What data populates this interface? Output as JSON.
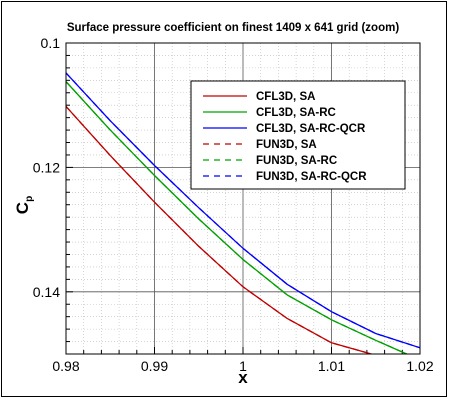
{
  "chart_data": {
    "type": "line",
    "title": "Surface pressure coefficient on finest 1409 x 641 grid (zoom)",
    "xlabel": "x",
    "ylabel": "C",
    "ylabel_sub": "p",
    "xlim": [
      0.98,
      1.02
    ],
    "ylim": [
      0.1,
      0.15
    ],
    "y_inverted": true,
    "x_ticks": [
      0.98,
      0.99,
      1.0,
      1.01,
      1.02
    ],
    "x_tick_labels": [
      "0.98",
      "0.99",
      "1",
      "1.01",
      "1.02"
    ],
    "y_ticks": [
      0.1,
      0.12,
      0.14
    ],
    "y_tick_labels": [
      "0.1",
      "0.12",
      "0.14"
    ],
    "grid": true,
    "legend_position": "top-right",
    "series": [
      {
        "name": "CFL3D, SA",
        "color": "#c00000",
        "dash": "solid",
        "x": [
          0.98,
          0.985,
          0.99,
          0.995,
          1.0,
          1.005,
          1.01,
          1.0145
        ],
        "y": [
          0.1102,
          0.1181,
          0.1256,
          0.1327,
          0.1392,
          0.1443,
          0.1482,
          0.15
        ]
      },
      {
        "name": "CFL3D, SA-RC",
        "color": "#00a000",
        "dash": "solid",
        "x": [
          0.98,
          0.985,
          0.99,
          0.995,
          1.0,
          1.005,
          1.01,
          1.015,
          1.0185
        ],
        "y": [
          0.1062,
          0.114,
          0.1213,
          0.1283,
          0.1348,
          0.1405,
          0.1445,
          0.1478,
          0.15
        ]
      },
      {
        "name": "CFL3D, SA-RC-QCR",
        "color": "#0000ff",
        "dash": "solid",
        "x": [
          0.98,
          0.985,
          0.99,
          0.995,
          1.0,
          1.005,
          1.01,
          1.015,
          1.02
        ],
        "y": [
          0.1048,
          0.1125,
          0.1197,
          0.1265,
          0.133,
          0.1388,
          0.1432,
          0.1467,
          0.149
        ]
      },
      {
        "name": "FUN3D, SA",
        "color": "#c00000",
        "dash": "dashed",
        "x": [
          0.98,
          0.985,
          0.99,
          0.995,
          1.0,
          1.005,
          1.01,
          1.0145
        ],
        "y": [
          0.1102,
          0.1181,
          0.1256,
          0.1327,
          0.1392,
          0.1443,
          0.1482,
          0.15
        ]
      },
      {
        "name": "FUN3D, SA-RC",
        "color": "#00a000",
        "dash": "dashed",
        "x": [
          0.98,
          0.985,
          0.99,
          0.995,
          1.0,
          1.005,
          1.01,
          1.015,
          1.0185
        ],
        "y": [
          0.1062,
          0.114,
          0.1213,
          0.1283,
          0.1348,
          0.1405,
          0.1445,
          0.1478,
          0.15
        ]
      },
      {
        "name": "FUN3D, SA-RC-QCR",
        "color": "#0000ff",
        "dash": "dashed",
        "x": [
          0.98,
          0.985,
          0.99,
          0.995,
          1.0,
          1.005,
          1.01,
          1.015,
          1.02
        ],
        "y": [
          0.1048,
          0.1125,
          0.1197,
          0.1265,
          0.133,
          0.1388,
          0.1432,
          0.1467,
          0.149
        ]
      }
    ]
  }
}
